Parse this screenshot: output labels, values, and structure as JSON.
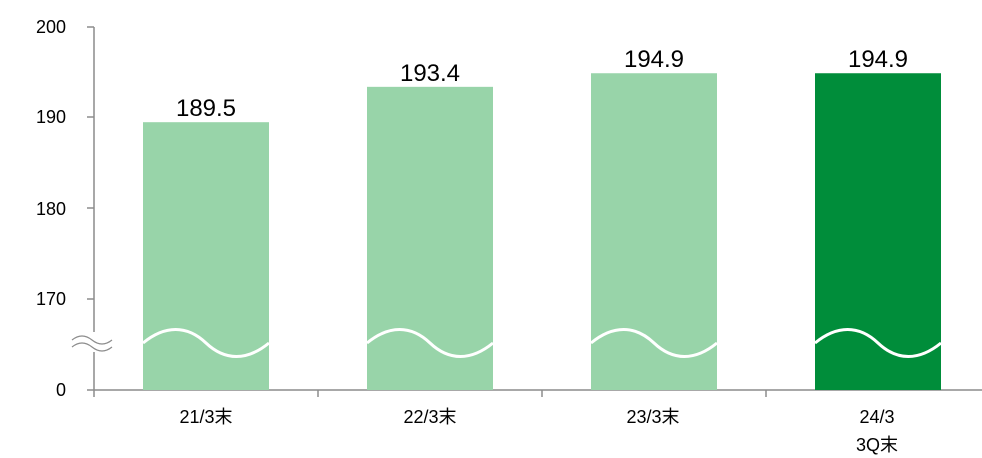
{
  "chart_data": {
    "type": "bar",
    "categories": [
      {
        "line1": "21/3末",
        "line2": ""
      },
      {
        "line1": "22/3末",
        "line2": ""
      },
      {
        "line1": "23/3末",
        "line2": ""
      },
      {
        "line1": "24/3",
        "line2": "3Q末"
      }
    ],
    "values": [
      189.5,
      193.4,
      194.9,
      194.9
    ],
    "data_labels": [
      "189.5",
      "193.4",
      "194.9",
      "194.9"
    ],
    "y_ticks": [
      "0",
      "170",
      "180",
      "190",
      "200"
    ],
    "ylim": [
      165,
      200
    ],
    "axis_break": true,
    "grid": false,
    "colors": {
      "bar_light": "#98d4a9",
      "bar_highlight": "#008d3a",
      "axis": "#8c8c8c"
    },
    "highlight_index": 3
  }
}
